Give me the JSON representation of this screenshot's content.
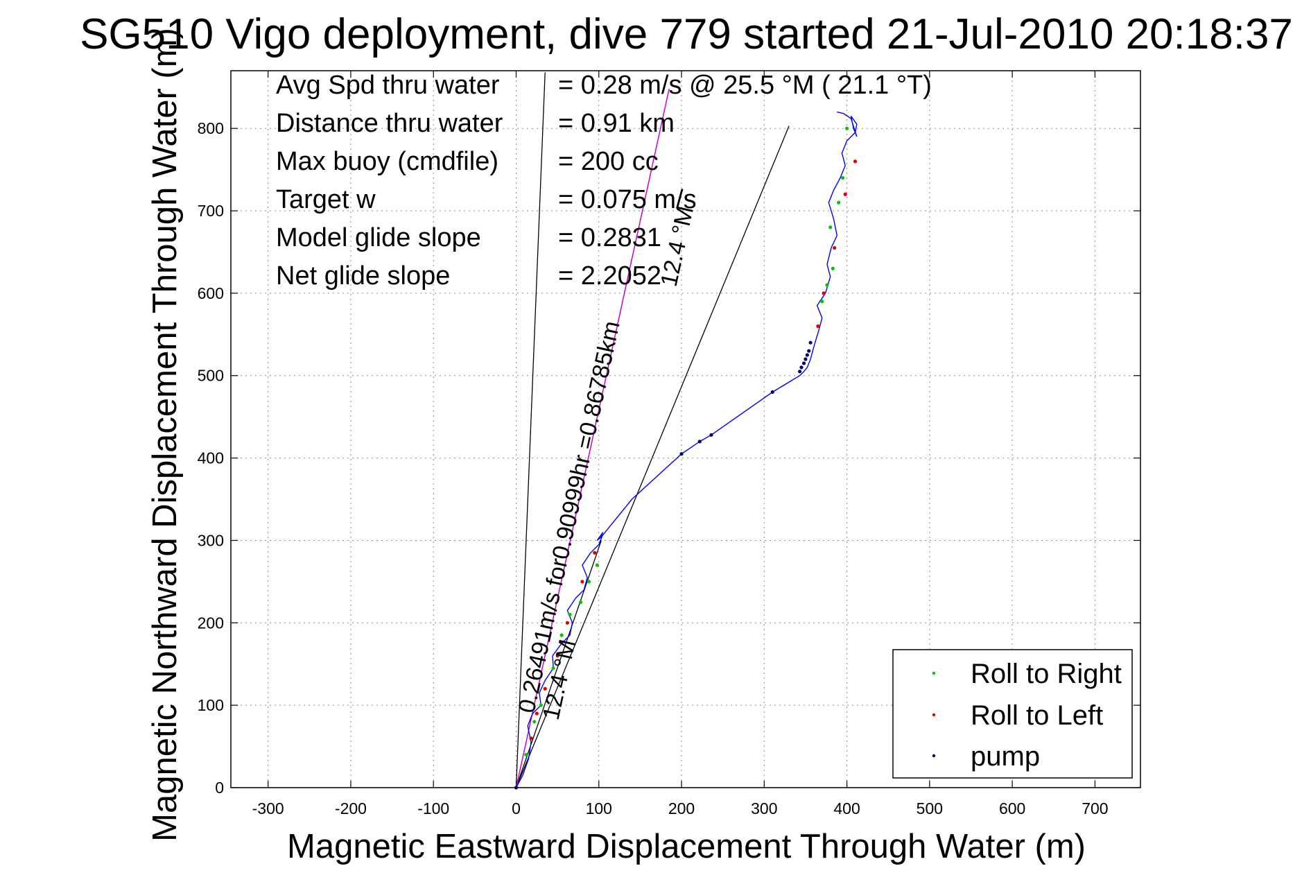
{
  "chart_data": {
    "type": "line",
    "title": "SG510 Vigo deployment, dive 779 started 21-Jul-2010 20:18:37",
    "xlabel": "Magnetic Eastward Displacement Through Water (m)",
    "ylabel": "Magnetic Northward Displacement Through Water (m)",
    "xlim": [
      -345,
      755
    ],
    "ylim": [
      0,
      870
    ],
    "xticks": [
      -300,
      -200,
      -100,
      0,
      100,
      200,
      300,
      400,
      500,
      600,
      700
    ],
    "yticks": [
      0,
      100,
      200,
      300,
      400,
      500,
      600,
      700,
      800
    ],
    "grid": true,
    "legend_position": "bottom-right",
    "colors": {
      "track": "#0000ff",
      "roll_right": "#00c800",
      "roll_left": "#e00000",
      "pump": "#000066",
      "heading_line": "#cc00cc",
      "ref_line": "#000000"
    },
    "info_lines": [
      {
        "label": "Avg Spd thru water",
        "value": "=  0.28 m/s @  25.5 °M ( 21.1 °T)"
      },
      {
        "label": "Distance thru water",
        "value": "=  0.91 km"
      },
      {
        "label": "Max buoy (cmdfile)",
        "value": "= 200 cc"
      },
      {
        "label": "Target w",
        "value": "= 0.075 m/s"
      },
      {
        "label": "Model glide slope",
        "value": "= 0.2831"
      },
      {
        "label": "Net glide slope",
        "value": "= 2.2052"
      }
    ],
    "annotations": [
      {
        "text": "0.26491m/s for0.90999hr =0.86785km",
        "rotated": true
      },
      {
        "text": "12.4 °M",
        "rotated": true
      },
      {
        "text": "12.4 °M",
        "rotated": true
      }
    ],
    "legend": [
      {
        "label": "Roll to Right",
        "color": "#00c800"
      },
      {
        "label": "Roll to Left",
        "color": "#e00000"
      },
      {
        "label": "pump",
        "color": "#000066"
      }
    ],
    "series": [
      {
        "name": "track",
        "x": [
          0,
          8,
          15,
          19,
          14,
          20,
          28,
          25,
          33,
          45,
          42,
          50,
          60,
          63,
          58,
          66,
          78,
          82,
          76,
          85,
          98,
          100,
          96,
          103,
          100,
          145,
          175,
          200,
          222,
          236,
          310,
          343,
          352,
          358,
          362,
          368,
          370,
          362,
          372,
          377,
          372,
          378,
          385,
          388,
          380,
          386,
          393,
          396,
          390,
          398,
          408,
          412,
          404,
          408,
          412,
          400,
          390
        ],
        "y": [
          0,
          20,
          40,
          60,
          80,
          100,
          120,
          140,
          160,
          170,
          185,
          200,
          215,
          225,
          240,
          255,
          265,
          280,
          300,
          315,
          325,
          340,
          360,
          380,
          400,
          420,
          440,
          460,
          480,
          500,
          510,
          520,
          530,
          540,
          560,
          580,
          600,
          620,
          640,
          660,
          680,
          700,
          720,
          740,
          760,
          780,
          800,
          820,
          820,
          830,
          820,
          815,
          820,
          822,
          825,
          828,
          830
        ],
        "x_tracked": true
      }
    ],
    "track": {
      "x": [
        0,
        8,
        15,
        18,
        14,
        20,
        30,
        28,
        35,
        45,
        44,
        55,
        65,
        68,
        62,
        72,
        82,
        86,
        80,
        90,
        100,
        104,
        98,
        105,
        102,
        140,
        200,
        222,
        236,
        310,
        343,
        348,
        352,
        356,
        360,
        366,
        370,
        364,
        374,
        380,
        376,
        381,
        388,
        384,
        378,
        384,
        392,
        398,
        394,
        400,
        410,
        412,
        405,
        408,
        412,
        405,
        396,
        388
      ],
      "y": [
        0,
        15,
        35,
        55,
        75,
        90,
        100,
        115,
        130,
        145,
        160,
        175,
        185,
        200,
        215,
        230,
        240,
        255,
        270,
        285,
        295,
        305,
        300,
        310,
        303,
        350,
        405,
        420,
        428,
        480,
        500,
        505,
        510,
        520,
        535,
        555,
        570,
        585,
        600,
        620,
        635,
        655,
        670,
        690,
        710,
        725,
        740,
        755,
        770,
        785,
        795,
        805,
        815,
        800,
        790,
        812,
        818,
        820
      ]
    },
    "roll_right_points": {
      "x": [
        12,
        22,
        30,
        45,
        55,
        65,
        78,
        88,
        98,
        370,
        376,
        383,
        380,
        390,
        395,
        400
      ],
      "y": [
        40,
        80,
        100,
        145,
        185,
        210,
        225,
        250,
        270,
        590,
        610,
        630,
        680,
        710,
        740,
        800
      ]
    },
    "roll_left_points": {
      "x": [
        18,
        25,
        35,
        50,
        62,
        80,
        95,
        365,
        372,
        385,
        398,
        410
      ],
      "y": [
        60,
        90,
        120,
        160,
        200,
        250,
        285,
        560,
        600,
        655,
        720,
        760
      ]
    },
    "pump_points": {
      "x": [
        0,
        200,
        222,
        236,
        310,
        343,
        345,
        348,
        350,
        352,
        354,
        356
      ],
      "y": [
        0,
        405,
        420,
        428,
        480,
        505,
        510,
        515,
        520,
        525,
        530,
        540
      ]
    },
    "heading_line": {
      "x": [
        0,
        185
      ],
      "y": [
        0,
        848
      ]
    },
    "ref_lines": [
      {
        "x": [
          0,
          35
        ],
        "y": [
          0,
          868
        ]
      },
      {
        "x": [
          0,
          330
        ],
        "y": [
          0,
          803
        ]
      },
      {
        "x": [
          0,
          103
        ],
        "y": [
          0,
          300
        ]
      }
    ]
  }
}
